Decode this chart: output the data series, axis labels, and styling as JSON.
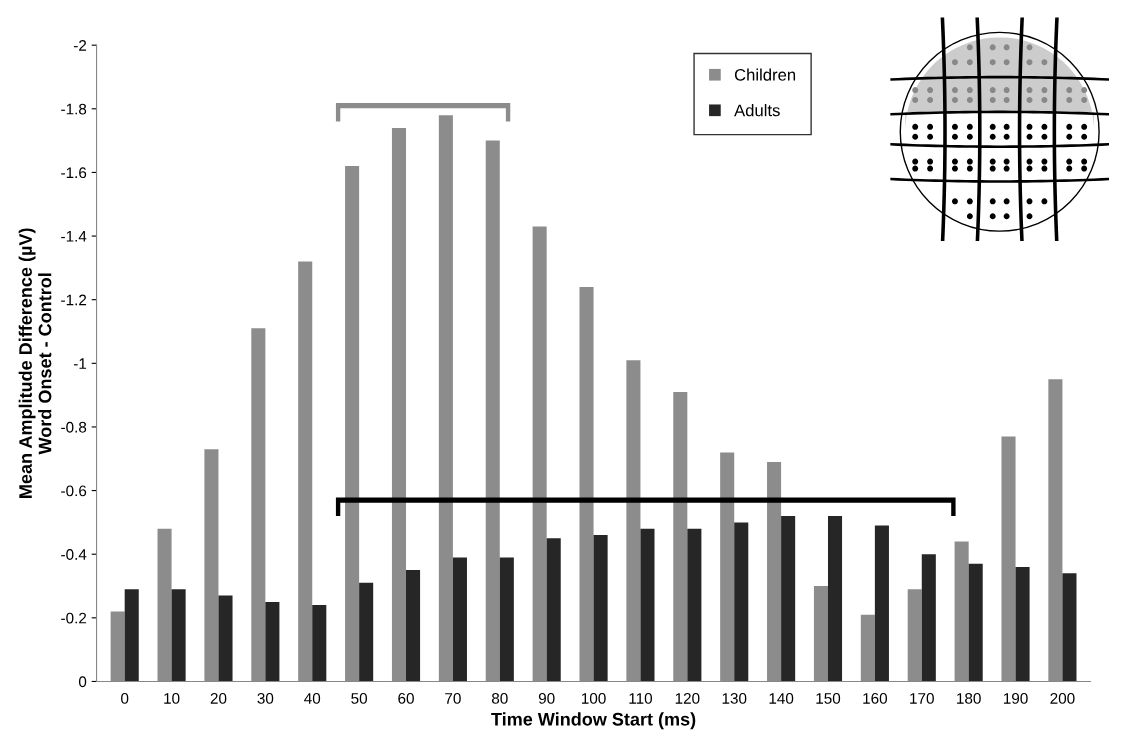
{
  "chart_data": {
    "type": "bar",
    "xlabel": "Time Window Start (ms)",
    "ylabel": "Mean Amplitude Difference (µV)\nWord Onset - Control",
    "categories": [
      "0",
      "10",
      "20",
      "30",
      "40",
      "50",
      "60",
      "70",
      "80",
      "90",
      "100",
      "110",
      "120",
      "130",
      "140",
      "150",
      "160",
      "170",
      "180",
      "190",
      "200"
    ],
    "series": [
      {
        "name": "Children",
        "color": "#8c8c8c",
        "values": [
          -0.22,
          -0.48,
          -0.73,
          -1.11,
          -1.32,
          -1.62,
          -1.74,
          -1.78,
          -1.7,
          -1.43,
          -1.24,
          -1.01,
          -0.91,
          -0.72,
          -0.69,
          -0.3,
          -0.21,
          -0.29,
          -0.44,
          -0.77,
          -0.95
        ]
      },
      {
        "name": "Adults",
        "color": "#262626",
        "values": [
          -0.29,
          -0.29,
          -0.27,
          -0.25,
          -0.24,
          -0.31,
          -0.35,
          -0.39,
          -0.39,
          -0.45,
          -0.46,
          -0.48,
          -0.48,
          -0.5,
          -0.52,
          -0.52,
          -0.49,
          -0.4,
          -0.37,
          -0.36,
          -0.34
        ]
      }
    ],
    "ylim": [
      0,
      -2
    ],
    "yticks": [
      0,
      -0.2,
      -0.4,
      -0.6,
      -0.8,
      -1,
      -1.2,
      -1.4,
      -1.6,
      -1.8,
      -2
    ],
    "legend": "top",
    "grid": false
  }
}
